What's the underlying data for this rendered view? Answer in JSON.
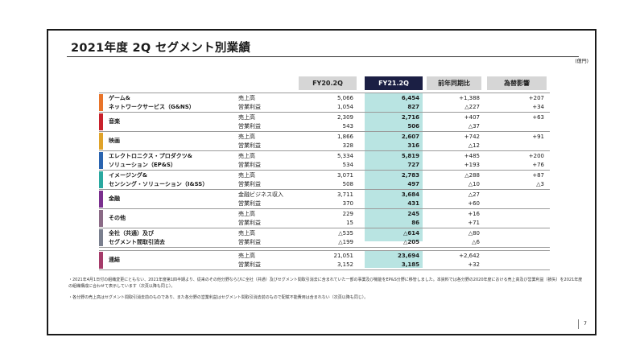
{
  "title": "2021年度 2Q セグメント別業績",
  "unit": "(億円)",
  "headers": [
    "FY20.2Q",
    "FY21.2Q",
    "前年同期比",
    "為替影響"
  ],
  "segments": [
    {
      "name1": "ゲーム&",
      "name2": "ネットワークサービス（G&NS）",
      "color": "#e8742a",
      "rows": [
        {
          "label": "売上高",
          "v0": "5,066",
          "v1": "6,454",
          "v2": "+1,388",
          "v3": "+207"
        },
        {
          "label": "営業利益",
          "v0": "1,054",
          "v1": "827",
          "v2": "△227",
          "v3": "+34"
        }
      ]
    },
    {
      "name1": "音楽",
      "name2": "",
      "color": "#c8212b",
      "rows": [
        {
          "label": "売上高",
          "v0": "2,309",
          "v1": "2,716",
          "v2": "+407",
          "v3": "+63"
        },
        {
          "label": "営業利益",
          "v0": "543",
          "v1": "506",
          "v2": "△37",
          "v3": ""
        }
      ]
    },
    {
      "name1": "映画",
      "name2": "",
      "color": "#e0a32a",
      "rows": [
        {
          "label": "売上高",
          "v0": "1,866",
          "v1": "2,607",
          "v2": "+742",
          "v3": "+91"
        },
        {
          "label": "営業利益",
          "v0": "328",
          "v1": "316",
          "v2": "△12",
          "v3": ""
        }
      ]
    },
    {
      "name1": "エレクトロニクス・プロダクツ&",
      "name2": "ソリューション（EP&S）",
      "color": "#2a64b0",
      "rows": [
        {
          "label": "売上高",
          "v0": "5,334",
          "v1": "5,819",
          "v2": "+485",
          "v3": "+200"
        },
        {
          "label": "営業利益",
          "v0": "534",
          "v1": "727",
          "v2": "+193",
          "v3": "+76"
        }
      ]
    },
    {
      "name1": "イメージング&",
      "name2": "センシング・ソリューション（I&SS）",
      "color": "#2aa8a0",
      "rows": [
        {
          "label": "売上高",
          "v0": "3,071",
          "v1": "2,783",
          "v2": "△288",
          "v3": "+87"
        },
        {
          "label": "営業利益",
          "v0": "508",
          "v1": "497",
          "v2": "△10",
          "v3": "△3"
        }
      ]
    },
    {
      "name1": "金融",
      "name2": "",
      "color": "#7a2f8e",
      "rows": [
        {
          "label": "金融ビジネス収入",
          "v0": "3,711",
          "v1": "3,684",
          "v2": "△27",
          "v3": ""
        },
        {
          "label": "営業利益",
          "v0": "370",
          "v1": "431",
          "v2": "+60",
          "v3": ""
        }
      ]
    },
    {
      "name1": "その他",
      "name2": "",
      "color": "#8a6a86",
      "rows": [
        {
          "label": "売上高",
          "v0": "229",
          "v1": "245",
          "v2": "+16",
          "v3": ""
        },
        {
          "label": "営業利益",
          "v0": "15",
          "v1": "86",
          "v2": "+71",
          "v3": ""
        }
      ]
    },
    {
      "name1": "全社（共通）及び",
      "name2": "セグメント間取引消去",
      "color": "#7a7f8e",
      "rows": [
        {
          "label": "売上高",
          "v0": "△535",
          "v1": "△614",
          "v2": "△80",
          "v3": ""
        },
        {
          "label": "営業利益",
          "v0": "△199",
          "v1": "△205",
          "v2": "△6",
          "v3": ""
        }
      ]
    }
  ],
  "total": {
    "name": "連結",
    "color": "#a53b6a",
    "rows": [
      {
        "label": "売上高",
        "v0": "21,051",
        "v1": "23,694",
        "v2": "+2,642",
        "v3": ""
      },
      {
        "label": "営業利益",
        "v0": "3,152",
        "v1": "3,185",
        "v2": "+32",
        "v3": ""
      }
    ]
  },
  "notes": [
    "・2021年4月1日付の組織変更にともない、2021年度第1四半期より、従来のその他分野ならびに全社（共通）及びセグメント間取引消去に含まれていた一部の事業及び機能をEP&S分野に移管しました。本資料では各分野の2020年度における売上高及び営業利益（損失）を2021年度の組織構成に合わせて表示しています（次頁以降も同じ）。",
    "・各分野の売上高はセグメント間取引消去前のものであり、また各分野の営業利益はセグメント間取引消去前のもので配賦不能費用は含まれない（次頁以降も同じ）。"
  ],
  "page_number": "7"
}
